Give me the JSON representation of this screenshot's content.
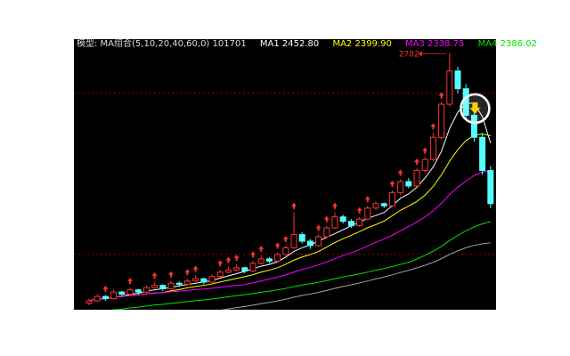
{
  "header": {
    "model_label": "模型: MA组合(5,10,20,40,60,0) 101701",
    "ma1": "MA1 2452.80",
    "ma2": "MA2 2399.90",
    "ma3": "MA3 2338.75",
    "ma4": "MA4 2386.02"
  },
  "colors": {
    "up": "#ff3232",
    "down": "#54ffff",
    "ma1": "#ffffff",
    "ma2": "#ffff00",
    "ma3": "#ff00ff",
    "ma4": "#00e600",
    "ma5": "#a0a0a0",
    "grid": "#a00000"
  },
  "chart_data": {
    "type": "candlestick",
    "title": "",
    "ylim": [
      1620,
      2820
    ],
    "peak_label": "2782",
    "candles": [
      [
        1650,
        1670,
        1640,
        1660
      ],
      [
        1660,
        1690,
        1655,
        1680
      ],
      [
        1680,
        1685,
        1660,
        1670
      ],
      [
        1670,
        1710,
        1665,
        1700
      ],
      [
        1700,
        1705,
        1680,
        1690
      ],
      [
        1690,
        1720,
        1685,
        1710
      ],
      [
        1710,
        1715,
        1690,
        1700
      ],
      [
        1700,
        1730,
        1695,
        1720
      ],
      [
        1720,
        1745,
        1715,
        1730
      ],
      [
        1730,
        1735,
        1705,
        1715
      ],
      [
        1715,
        1750,
        1710,
        1740
      ],
      [
        1740,
        1748,
        1725,
        1735
      ],
      [
        1735,
        1760,
        1730,
        1750
      ],
      [
        1750,
        1775,
        1745,
        1760
      ],
      [
        1760,
        1765,
        1735,
        1745
      ],
      [
        1745,
        1780,
        1740,
        1770
      ],
      [
        1770,
        1800,
        1765,
        1790
      ],
      [
        1790,
        1815,
        1785,
        1800
      ],
      [
        1800,
        1825,
        1795,
        1810
      ],
      [
        1810,
        1815,
        1785,
        1795
      ],
      [
        1795,
        1840,
        1790,
        1830
      ],
      [
        1830,
        1865,
        1825,
        1850
      ],
      [
        1850,
        1858,
        1830,
        1840
      ],
      [
        1840,
        1880,
        1835,
        1870
      ],
      [
        1870,
        1910,
        1865,
        1900
      ],
      [
        1900,
        2060,
        1895,
        1960
      ],
      [
        1960,
        1970,
        1920,
        1930
      ],
      [
        1930,
        1940,
        1895,
        1910
      ],
      [
        1910,
        1960,
        1905,
        1950
      ],
      [
        1950,
        2000,
        1945,
        1990
      ],
      [
        1990,
        2060,
        1985,
        2040
      ],
      [
        2040,
        2050,
        2010,
        2020
      ],
      [
        2020,
        2030,
        1990,
        2000
      ],
      [
        2000,
        2040,
        1995,
        2030
      ],
      [
        2030,
        2090,
        2025,
        2080
      ],
      [
        2080,
        2110,
        2070,
        2100
      ],
      [
        2100,
        2105,
        2080,
        2090
      ],
      [
        2090,
        2160,
        2085,
        2150
      ],
      [
        2150,
        2210,
        2140,
        2200
      ],
      [
        2200,
        2215,
        2170,
        2180
      ],
      [
        2180,
        2260,
        2175,
        2250
      ],
      [
        2250,
        2310,
        2240,
        2300
      ],
      [
        2300,
        2420,
        2290,
        2400
      ],
      [
        2400,
        2560,
        2390,
        2550
      ],
      [
        2550,
        2782,
        2540,
        2700
      ],
      [
        2700,
        2720,
        2600,
        2620
      ],
      [
        2620,
        2640,
        2480,
        2500
      ],
      [
        2500,
        2520,
        2380,
        2400
      ],
      [
        2400,
        2420,
        2230,
        2250
      ],
      [
        2250,
        2270,
        2080,
        2100
      ]
    ],
    "moving_averages": [
      {
        "name": "MA1",
        "period": 5
      },
      {
        "name": "MA2",
        "period": 10
      },
      {
        "name": "MA3",
        "period": 20
      },
      {
        "name": "MA4",
        "period": 40
      },
      {
        "name": "MA5",
        "period": 60
      }
    ],
    "reference_levels": [
      2600,
      1870
    ],
    "signal_indices": [
      2,
      5,
      8,
      10,
      12,
      13,
      16,
      17,
      18,
      20,
      21,
      23,
      24,
      25,
      28,
      29,
      30,
      33,
      34,
      37,
      38,
      40,
      41,
      42,
      43
    ]
  }
}
